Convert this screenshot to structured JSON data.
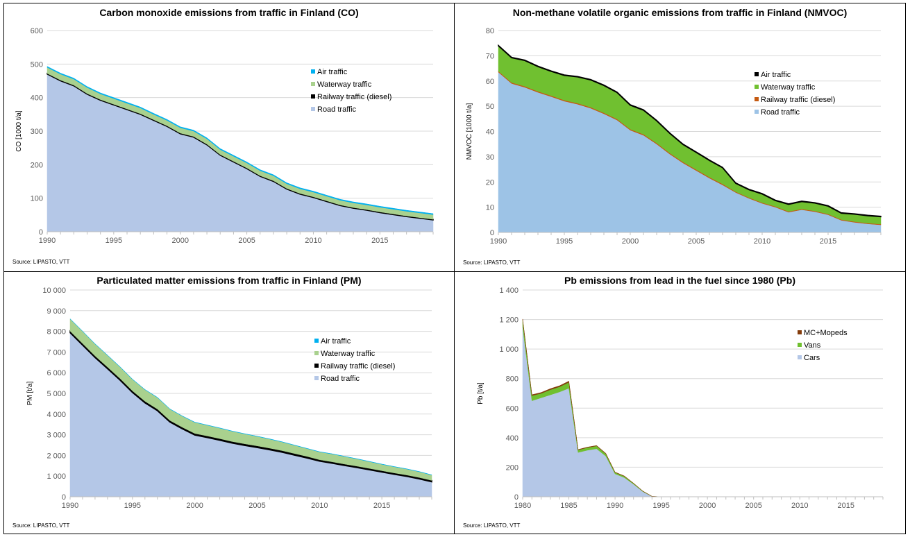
{
  "chart_data": [
    {
      "type": "area",
      "title": "Carbon monoxide emissions from traffic in Finland (CO)",
      "ylabel": "CO [1000 t/a]",
      "xlabel": "",
      "source": "Source: LIPASTO, VTT",
      "xlim": [
        1990,
        2019
      ],
      "ylim": [
        0,
        600
      ],
      "yticks": [
        0,
        100,
        200,
        300,
        400,
        500,
        600
      ],
      "ytick_labels": [
        "0",
        "100",
        "200",
        "300",
        "400",
        "500",
        "600"
      ],
      "xticks": [
        1990,
        1995,
        2000,
        2005,
        2010,
        2015
      ],
      "xtick_labels": [
        "1990",
        "1995",
        "2000",
        "2005",
        "2010",
        "2015"
      ],
      "grid": true,
      "legend_position": "right",
      "x": [
        1990,
        1991,
        1992,
        1993,
        1994,
        1995,
        1996,
        1997,
        1998,
        1999,
        2000,
        2001,
        2002,
        2003,
        2004,
        2005,
        2006,
        2007,
        2008,
        2009,
        2010,
        2011,
        2012,
        2013,
        2014,
        2015,
        2016,
        2017,
        2018,
        2019
      ],
      "series": [
        {
          "name": "Road traffic",
          "color": "#b4c7e7",
          "values": [
            470,
            450,
            435,
            410,
            392,
            378,
            364,
            350,
            332,
            314,
            292,
            282,
            259,
            228,
            208,
            188,
            165,
            150,
            127,
            112,
            102,
            90,
            78,
            70,
            64,
            57,
            51,
            45,
            40,
            35
          ]
        },
        {
          "name": "Railway traffic (diesel)",
          "color": "#000000",
          "values": [
            2,
            2,
            2,
            2,
            2,
            2,
            2,
            2,
            2,
            2,
            2,
            2,
            2,
            2,
            2,
            2,
            2,
            2,
            2,
            2,
            2,
            2,
            2,
            2,
            2,
            2,
            2,
            2,
            2,
            2
          ]
        },
        {
          "name": "Waterway traffic",
          "color": "#a9d18e",
          "values": [
            18,
            18,
            18,
            18,
            17,
            17,
            17,
            17,
            16,
            16,
            16,
            16,
            16,
            15,
            15,
            15,
            15,
            15,
            14,
            14,
            14,
            14,
            14,
            14,
            14,
            14,
            14,
            14,
            14,
            14
          ]
        },
        {
          "name": "Air traffic",
          "color": "#00b0f0",
          "values": [
            3,
            3,
            3,
            3,
            3,
            3,
            3,
            3,
            3,
            3,
            3,
            3,
            3,
            3,
            3,
            3,
            3,
            3,
            3,
            3,
            3,
            3,
            3,
            3,
            3,
            3,
            3,
            3,
            3,
            3
          ]
        }
      ],
      "legend_order": [
        "Air traffic",
        "Waterway traffic",
        "Railway traffic (diesel)",
        "Road traffic"
      ]
    },
    {
      "type": "area",
      "title": "Non-methane volatile organic emissions from traffic in Finland (NMVOC)",
      "ylabel": "NMVOC [1000 t/a]",
      "xlabel": "",
      "source": "Source: LIPASTO, VTT",
      "xlim": [
        1990,
        2019
      ],
      "ylim": [
        0,
        80
      ],
      "yticks": [
        0,
        10,
        20,
        30,
        40,
        50,
        60,
        70,
        80
      ],
      "ytick_labels": [
        "0",
        "10",
        "20",
        "30",
        "40",
        "50",
        "60",
        "70",
        "80"
      ],
      "xticks": [
        1990,
        1995,
        2000,
        2005,
        2010,
        2015
      ],
      "xtick_labels": [
        "1990",
        "1995",
        "2000",
        "2005",
        "2010",
        "2015"
      ],
      "grid": true,
      "legend_position": "right",
      "x": [
        1990,
        1991,
        1992,
        1993,
        1994,
        1995,
        1996,
        1997,
        1998,
        1999,
        2000,
        2001,
        2002,
        2003,
        2004,
        2005,
        2006,
        2007,
        2008,
        2009,
        2010,
        2011,
        2012,
        2013,
        2014,
        2015,
        2016,
        2017,
        2018,
        2019
      ],
      "series": [
        {
          "name": "Road traffic",
          "color": "#9dc3e6",
          "values": [
            63.5,
            59,
            57.5,
            55.5,
            53.8,
            52,
            50.8,
            49.2,
            47,
            44.5,
            40.5,
            38.5,
            35,
            31,
            27.5,
            24.5,
            21.5,
            18.8,
            15.8,
            13.5,
            11.5,
            10,
            8,
            9,
            8.2,
            7,
            4.8,
            4,
            3.4,
            3
          ]
        },
        {
          "name": "Railway traffic (diesel)",
          "color": "#c55a11",
          "values": [
            0.4,
            0.4,
            0.4,
            0.4,
            0.4,
            0.4,
            0.4,
            0.4,
            0.4,
            0.4,
            0.4,
            0.4,
            0.4,
            0.4,
            0.4,
            0.4,
            0.4,
            0.4,
            0.3,
            0.3,
            0.3,
            0.3,
            0.3,
            0.3,
            0.3,
            0.3,
            0.3,
            0.3,
            0.3,
            0.3
          ]
        },
        {
          "name": "Waterway traffic",
          "color": "#70c030",
          "values": [
            10,
            9.8,
            10.2,
            9.8,
            9.6,
            9.8,
            10.4,
            10.8,
            10.8,
            10.5,
            9.5,
            9.5,
            8.8,
            7.8,
            6.9,
            6.8,
            6.6,
            6.4,
            3.3,
            3.1,
            3.4,
            2.3,
            2.8,
            2.9,
            3.1,
            3.1,
            2.5,
            2.9,
            2.9,
            2.9
          ]
        },
        {
          "name": "Air traffic",
          "color": "#000000",
          "values": [
            0.2,
            0.2,
            0.2,
            0.2,
            0.2,
            0.2,
            0.2,
            0.2,
            0.2,
            0.2,
            0.2,
            0.2,
            0.2,
            0.2,
            0.2,
            0.2,
            0.2,
            0.2,
            0.2,
            0.2,
            0.2,
            0.2,
            0.2,
            0.2,
            0.2,
            0.2,
            0.2,
            0.2,
            0.2,
            0.2
          ]
        }
      ],
      "legend_order": [
        "Air traffic",
        "Waterway traffic",
        "Railway traffic (diesel)",
        "Road traffic"
      ]
    },
    {
      "type": "area",
      "title": "Particulated matter emissions from traffic in Finland (PM)",
      "ylabel": "PM [t/a]",
      "xlabel": "",
      "source": "Source: LIPASTO, VTT",
      "xlim": [
        1990,
        2019
      ],
      "ylim": [
        0,
        10000
      ],
      "yticks": [
        0,
        1000,
        2000,
        3000,
        4000,
        5000,
        6000,
        7000,
        8000,
        9000,
        10000
      ],
      "ytick_labels": [
        "0",
        "1 000",
        "2 000",
        "3 000",
        "4 000",
        "5 000",
        "6 000",
        "7 000",
        "8 000",
        "9 000",
        "10 000"
      ],
      "xticks": [
        1990,
        1995,
        2000,
        2005,
        2010,
        2015
      ],
      "xtick_labels": [
        "1990",
        "1995",
        "2000",
        "2005",
        "2010",
        "2015"
      ],
      "grid": true,
      "legend_position": "right",
      "x": [
        1990,
        1991,
        1992,
        1993,
        1994,
        1995,
        1996,
        1997,
        1998,
        1999,
        2000,
        2001,
        2002,
        2003,
        2004,
        2005,
        2006,
        2007,
        2008,
        2009,
        2010,
        2011,
        2012,
        2013,
        2014,
        2015,
        2016,
        2017,
        2018,
        2019
      ],
      "series": [
        {
          "name": "Road traffic",
          "color": "#b4c7e7",
          "values": [
            7930,
            7330,
            6730,
            6190,
            5640,
            5040,
            4540,
            4160,
            3610,
            3280,
            2980,
            2860,
            2730,
            2590,
            2480,
            2380,
            2270,
            2150,
            2010,
            1870,
            1720,
            1620,
            1510,
            1410,
            1300,
            1190,
            1080,
            980,
            860,
            720
          ]
        },
        {
          "name": "Railway traffic (diesel)",
          "color": "#000000",
          "values": [
            80,
            80,
            80,
            80,
            80,
            80,
            80,
            80,
            80,
            80,
            80,
            80,
            80,
            80,
            80,
            80,
            80,
            80,
            80,
            80,
            70,
            70,
            70,
            70,
            70,
            70,
            70,
            70,
            70,
            70
          ]
        },
        {
          "name": "Waterway traffic",
          "color": "#a9d18e",
          "values": [
            590,
            590,
            580,
            570,
            560,
            560,
            560,
            560,
            550,
            540,
            540,
            520,
            510,
            500,
            480,
            460,
            440,
            420,
            400,
            380,
            380,
            380,
            370,
            350,
            330,
            310,
            300,
            290,
            280,
            260
          ]
        },
        {
          "name": "Air traffic",
          "color": "#00b0f0",
          "values": [
            10,
            10,
            10,
            10,
            10,
            10,
            10,
            10,
            10,
            10,
            10,
            10,
            10,
            10,
            10,
            10,
            10,
            10,
            10,
            10,
            10,
            10,
            10,
            10,
            10,
            10,
            10,
            10,
            10,
            10
          ]
        }
      ],
      "legend_order": [
        "Air traffic",
        "Waterway traffic",
        "Railway traffic (diesel)",
        "Road traffic"
      ]
    },
    {
      "type": "area",
      "title": "Pb emissions from lead in the fuel since 1980 (Pb)",
      "ylabel": "Pb [t/a]",
      "xlabel": "",
      "source": "Source: LIPASTO, VTT",
      "xlim": [
        1980,
        2019
      ],
      "ylim": [
        0,
        1400
      ],
      "yticks": [
        0,
        200,
        400,
        600,
        800,
        1000,
        1200,
        1400
      ],
      "ytick_labels": [
        "0",
        "200",
        "400",
        "600",
        "800",
        "1 000",
        "1 200",
        "1 400"
      ],
      "xticks": [
        1980,
        1985,
        1990,
        1995,
        2000,
        2005,
        2010,
        2015
      ],
      "xtick_labels": [
        "1980",
        "1985",
        "1990",
        "1995",
        "2000",
        "2005",
        "2010",
        "2015"
      ],
      "grid": true,
      "legend_position": "top-right",
      "x": [
        1980,
        1981,
        1982,
        1983,
        1984,
        1985,
        1986,
        1987,
        1988,
        1989,
        1990,
        1991,
        1992,
        1993,
        1994,
        1995,
        1996,
        1997,
        1998,
        1999,
        2000,
        2001,
        2002,
        2003,
        2004,
        2005,
        2006,
        2007,
        2008,
        2009,
        2010,
        2011,
        2012,
        2013,
        2014,
        2015,
        2016,
        2017,
        2018,
        2019
      ],
      "series": [
        {
          "name": "Cars",
          "color": "#b4c7e7",
          "values": [
            1150,
            650,
            670,
            690,
            710,
            735,
            300,
            315,
            325,
            275,
            155,
            130,
            85,
            35,
            2,
            0,
            0,
            0,
            0,
            0,
            0,
            0,
            0,
            0,
            0,
            0,
            0,
            0,
            0,
            0,
            0,
            0,
            0,
            0,
            0,
            0,
            0,
            0,
            0,
            0
          ]
        },
        {
          "name": "Vans",
          "color": "#70c030",
          "values": [
            45,
            35,
            30,
            35,
            35,
            40,
            17,
            18,
            19,
            16,
            10,
            9,
            6,
            3,
            1,
            0,
            0,
            0,
            0,
            0,
            0,
            0,
            0,
            0,
            0,
            0,
            0,
            0,
            0,
            0,
            0,
            0,
            0,
            0,
            0,
            0,
            0,
            0,
            0,
            0
          ]
        },
        {
          "name": "MC+Mopeds",
          "color": "#843c0c",
          "values": [
            8,
            6,
            6,
            7,
            7,
            8,
            3,
            3,
            3,
            3,
            2,
            2,
            1,
            1,
            0,
            0,
            0,
            0,
            0,
            0,
            0,
            0,
            0,
            0,
            0,
            0,
            0,
            0,
            0,
            0,
            0,
            0,
            0,
            0,
            0,
            0,
            0,
            0,
            0,
            0
          ]
        }
      ],
      "legend_order": [
        "MC+Mopeds",
        "Vans",
        "Cars"
      ]
    }
  ]
}
